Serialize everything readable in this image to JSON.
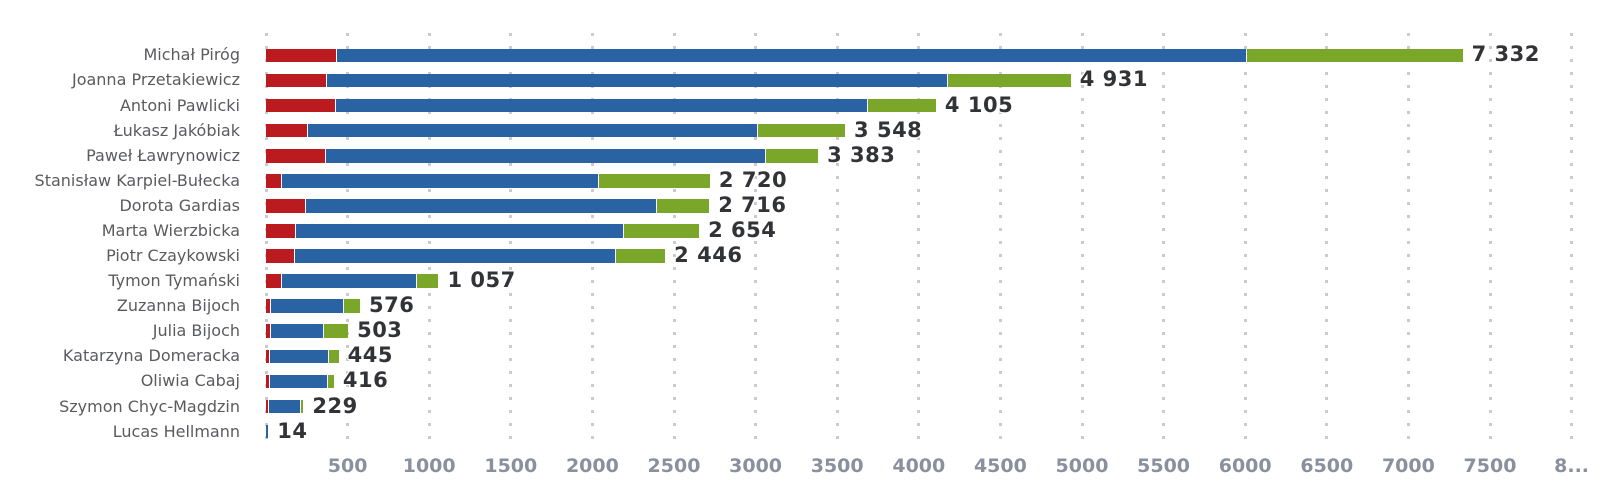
{
  "chart_data": {
    "type": "bar",
    "orientation": "horizontal",
    "stacked": true,
    "title": "",
    "xlabel": "",
    "ylabel": "",
    "grid": "dotted-vertical",
    "legend": "none",
    "xlim": [
      0,
      8150
    ],
    "x_ticks": [
      0,
      500,
      1000,
      1500,
      2000,
      2500,
      3000,
      3500,
      4000,
      4500,
      5000,
      5500,
      6000,
      6500,
      7000,
      7500,
      8000
    ],
    "x_tick_labels": [
      "",
      "500",
      "1000",
      "1500",
      "2000",
      "2500",
      "3000",
      "3500",
      "4000",
      "4500",
      "5000",
      "5500",
      "6000",
      "6500",
      "7000",
      "7500",
      "8..."
    ],
    "categories": [
      "Michał Piróg",
      "Joanna Przetakiewicz",
      "Antoni Pawlicki",
      "Łukasz Jakóbiak",
      "Paweł Ławrynowicz",
      "Stanisław Karpiel-Bułecka",
      "Dorota Gardias",
      "Marta Wierzbicka",
      "Piotr Czaykowski",
      "Tymon Tymański",
      "Zuzanna Bijoch",
      "Julia Bijoch",
      "Katarzyna Domeracka",
      "Oliwia Cabaj",
      "Szymon Chyc-Magdzin",
      "Lucas Hellmann"
    ],
    "series": [
      {
        "name": "segment-red",
        "color": "#bb1b1e",
        "values": [
          430,
          370,
          420,
          250,
          360,
          90,
          240,
          175,
          170,
          90,
          25,
          25,
          20,
          20,
          10,
          0
        ]
      },
      {
        "name": "segment-blue",
        "color": "#2a63a4",
        "values": [
          5572,
          3801,
          3265,
          2758,
          2698,
          1945,
          2151,
          2014,
          1971,
          827,
          446,
          325,
          360,
          356,
          199,
          14
        ]
      },
      {
        "name": "segment-green",
        "color": "#7aa62a",
        "values": [
          1330,
          760,
          420,
          540,
          325,
          685,
          325,
          465,
          305,
          140,
          105,
          153,
          65,
          40,
          20,
          0
        ]
      }
    ],
    "totals": [
      7332,
      4931,
      4105,
      3548,
      3383,
      2720,
      2716,
      2654,
      2446,
      1057,
      576,
      503,
      445,
      416,
      229,
      14
    ],
    "total_labels": [
      "7 332",
      "4 931",
      "4 105",
      "3 548",
      "3 383",
      "2 720",
      "2 716",
      "2 654",
      "2 446",
      "1 057",
      "576",
      "503",
      "445",
      "416",
      "229",
      "14"
    ]
  },
  "colors": {
    "background": "#ffffff",
    "grid_dots": "#cbcbcb",
    "category_text": "#5a5b5e",
    "value_text": "#323336",
    "axis_text": "#8b909e"
  }
}
